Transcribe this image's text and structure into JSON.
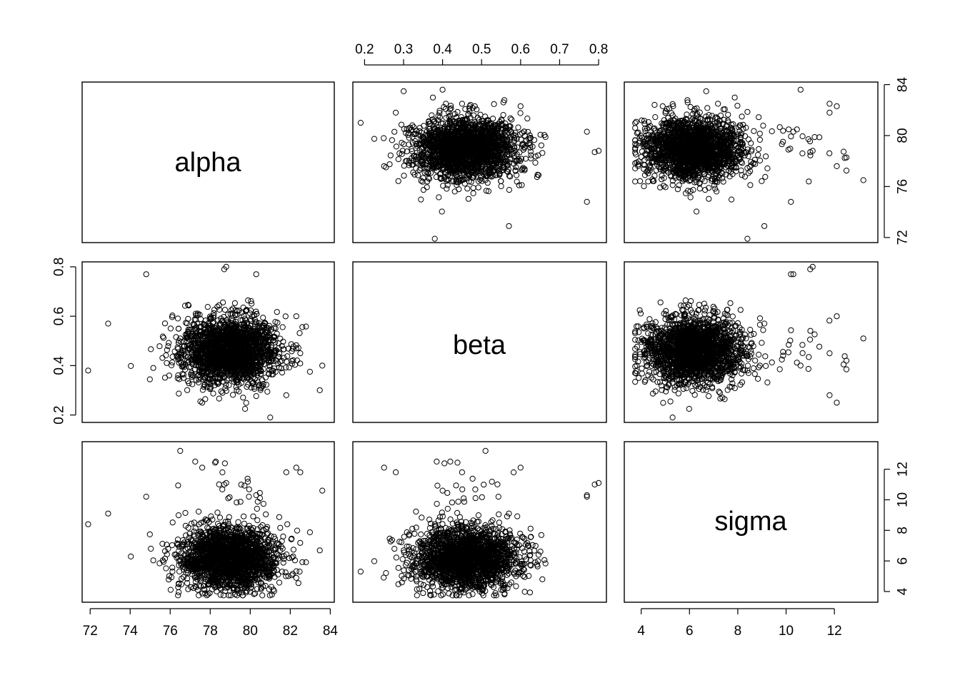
{
  "chart_data": {
    "type": "scatter",
    "variables": [
      "alpha",
      "beta",
      "sigma"
    ],
    "axis_ranges": {
      "alpha": [
        71.6,
        84.2
      ],
      "beta": [
        0.17,
        0.82
      ],
      "sigma": [
        3.3,
        13.8
      ]
    },
    "ticks": {
      "alpha": {
        "values": [
          72,
          74,
          76,
          78,
          80,
          82,
          84
        ],
        "labels": [
          "72",
          "74",
          "76",
          "78",
          "80",
          "82",
          "84"
        ]
      },
      "beta": {
        "values": [
          0.2,
          0.3,
          0.4,
          0.5,
          0.6,
          0.7,
          0.8
        ],
        "labels": [
          "0.2",
          "0.3",
          "0.4",
          "0.5",
          "0.6",
          "0.7",
          "0.8"
        ]
      },
      "beta_left": {
        "values": [
          0.2,
          0.4,
          0.6,
          0.8
        ],
        "labels": [
          "0.2",
          "0.4",
          "0.6",
          "0.8"
        ]
      },
      "alpha_right": {
        "values": [
          72,
          76,
          80,
          84
        ],
        "labels": [
          "72",
          "76",
          "80",
          "84"
        ]
      },
      "sigma": {
        "values": [
          4,
          6,
          8,
          10,
          12
        ],
        "labels": [
          "4",
          "6",
          "8",
          "10",
          "12"
        ]
      }
    },
    "distribution": {
      "n_samples": 2000,
      "alpha": {
        "center": 79.0,
        "spread": 1.2
      },
      "beta": {
        "center": 0.46,
        "spread": 0.07
      },
      "sigma": {
        "center": 6.1,
        "spread": 0.95,
        "tail": "right-skewed to about 13.2"
      },
      "correlation": "approximately none between any pair"
    },
    "notable_points": [
      {
        "alpha": 71.9,
        "beta": 0.38,
        "sigma": 8.4
      },
      {
        "alpha": 72.9,
        "beta": 0.57,
        "sigma": 9.1
      },
      {
        "alpha": 76.5,
        "beta": 0.51,
        "sigma": 13.2
      },
      {
        "alpha": 78.7,
        "beta": 0.79,
        "sigma": 11.0
      },
      {
        "alpha": 78.8,
        "beta": 0.8,
        "sigma": 11.1
      },
      {
        "alpha": 83.6,
        "beta": 0.4,
        "sigma": 10.6
      },
      {
        "alpha": 80.3,
        "beta": 0.77,
        "sigma": 10.3
      },
      {
        "alpha": 74.8,
        "beta": 0.77,
        "sigma": 10.2
      },
      {
        "alpha": 81.0,
        "beta": 0.19,
        "sigma": 5.3
      },
      {
        "alpha": 81.8,
        "beta": 0.28,
        "sigma": 11.8
      },
      {
        "alpha": 82.3,
        "beta": 0.6,
        "sigma": 12.1
      },
      {
        "alpha": 77.6,
        "beta": 0.25,
        "sigma": 12.1
      },
      {
        "alpha": 82.5,
        "beta": 0.45,
        "sigma": 11.8
      }
    ]
  }
}
